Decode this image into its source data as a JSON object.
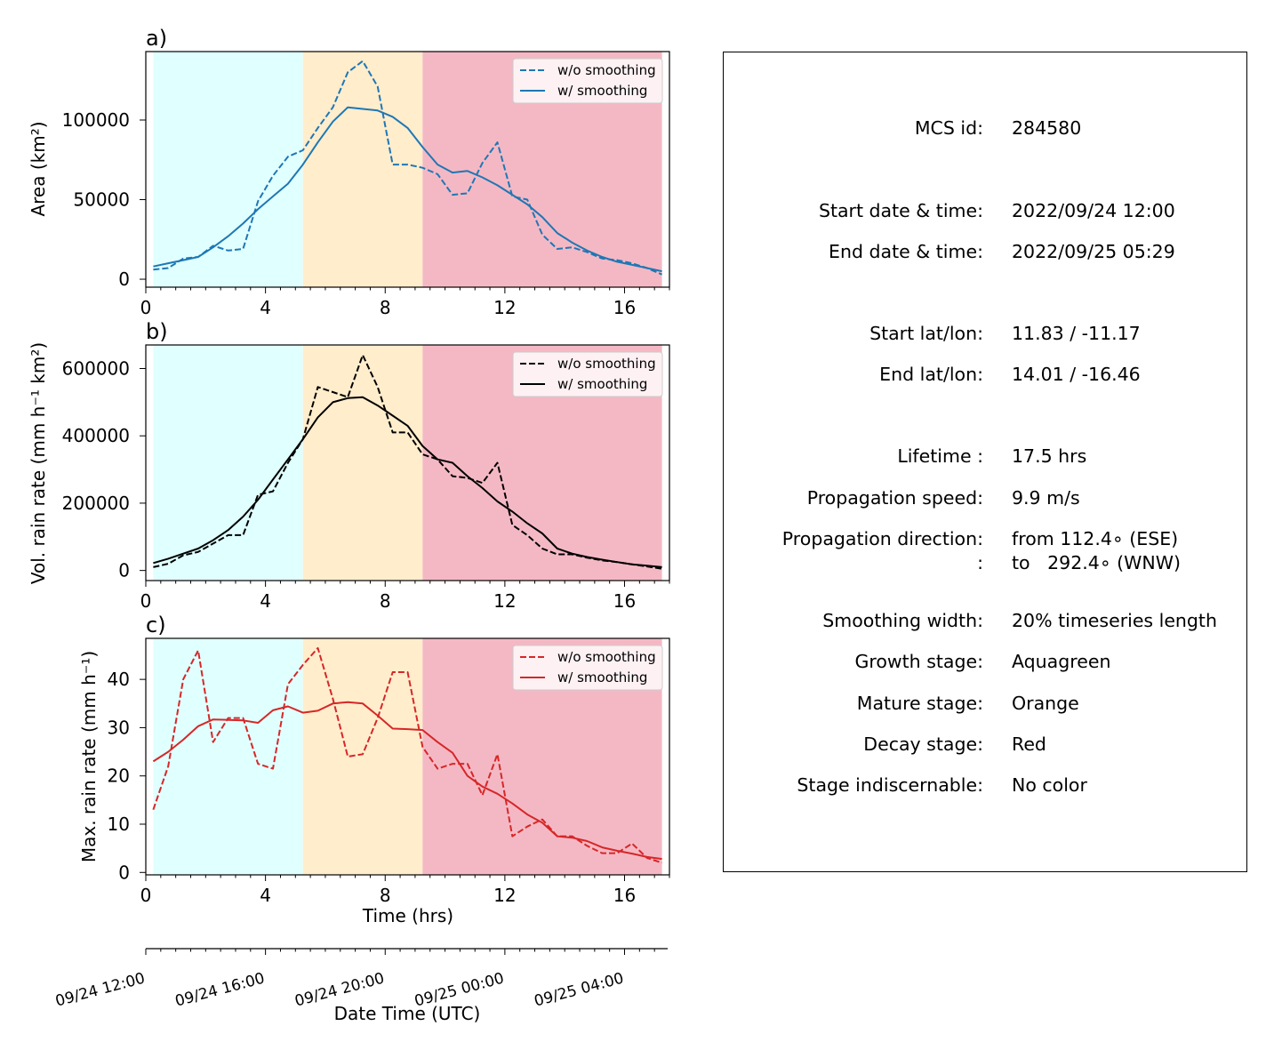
{
  "colors": {
    "growth_bg": "#e0ffff",
    "mature_bg": "#ffedcc",
    "decay_bg": "#f4b8c4",
    "series_blue": "#1f77b4",
    "series_black": "#000000",
    "series_red": "#d62728"
  },
  "chart_data": [
    {
      "type": "line",
      "panel_label": "a)",
      "ylabel": "Area  (km²)",
      "xlim": [
        0,
        17.5
      ],
      "ylim": [
        -5000,
        143000
      ],
      "xticks": [
        0,
        4,
        8,
        12,
        16
      ],
      "yticks": [
        0,
        50000,
        100000
      ],
      "stages": [
        {
          "name": "growth",
          "start": 0.25,
          "end": 5.25
        },
        {
          "name": "mature",
          "start": 5.25,
          "end": 9.25
        },
        {
          "name": "decay",
          "start": 9.25,
          "end": 17.25
        }
      ],
      "legend": {
        "position": "upper right"
      },
      "series": [
        {
          "name": "w/o smoothing",
          "style": "dashed",
          "color": "#1f77b4",
          "x": [
            0.25,
            0.75,
            1.25,
            1.75,
            2.25,
            2.75,
            3.25,
            3.75,
            4.25,
            4.75,
            5.25,
            5.75,
            6.25,
            6.75,
            7.25,
            7.75,
            8.25,
            8.75,
            9.25,
            9.75,
            10.25,
            10.75,
            11.25,
            11.75,
            12.25,
            12.75,
            13.25,
            13.75,
            14.25,
            14.75,
            15.25,
            15.75,
            16.25,
            16.75,
            17.25
          ],
          "y": [
            6000,
            7000,
            13000,
            14000,
            21000,
            18000,
            19000,
            49000,
            65000,
            77000,
            81000,
            95000,
            108000,
            130000,
            137000,
            121000,
            72000,
            72000,
            70000,
            66000,
            53000,
            54000,
            73000,
            86000,
            52000,
            50000,
            28000,
            19000,
            20000,
            17000,
            13000,
            12000,
            10000,
            7000,
            3000
          ]
        },
        {
          "name": "w/ smoothing",
          "style": "solid",
          "color": "#1f77b4",
          "x": [
            0.25,
            0.75,
            1.25,
            1.75,
            2.25,
            2.75,
            3.25,
            3.75,
            4.25,
            4.75,
            5.25,
            5.75,
            6.25,
            6.75,
            7.25,
            7.75,
            8.25,
            8.75,
            9.25,
            9.75,
            10.25,
            10.75,
            11.25,
            11.75,
            12.25,
            12.75,
            13.25,
            13.75,
            14.25,
            14.75,
            15.25,
            15.75,
            16.25,
            16.75,
            17.25
          ],
          "y": [
            8000,
            10000,
            12000,
            14000,
            20000,
            27000,
            35000,
            44000,
            52000,
            60000,
            72000,
            86000,
            99000,
            108000,
            107000,
            106000,
            102000,
            95000,
            83000,
            72000,
            67000,
            68000,
            64000,
            59000,
            53000,
            47000,
            39000,
            29000,
            23000,
            18000,
            14000,
            11000,
            9000,
            7000,
            5000
          ]
        }
      ]
    },
    {
      "type": "line",
      "panel_label": "b)",
      "ylabel": "Vol. rain rate (mm h⁻¹ km²)",
      "xlim": [
        0,
        17.5
      ],
      "ylim": [
        -30000,
        670000
      ],
      "xticks": [
        0,
        4,
        8,
        12,
        16
      ],
      "yticks": [
        0,
        200000,
        400000,
        600000
      ],
      "stages": [
        {
          "name": "growth",
          "start": 0.25,
          "end": 5.25
        },
        {
          "name": "mature",
          "start": 5.25,
          "end": 9.25
        },
        {
          "name": "decay",
          "start": 9.25,
          "end": 17.25
        }
      ],
      "legend": {
        "position": "upper right"
      },
      "series": [
        {
          "name": "w/o smoothing",
          "style": "dashed",
          "color": "#000000",
          "x": [
            0.25,
            0.75,
            1.25,
            1.75,
            2.25,
            2.75,
            3.25,
            3.75,
            4.25,
            4.75,
            5.25,
            5.75,
            6.25,
            6.75,
            7.25,
            7.75,
            8.25,
            8.75,
            9.25,
            9.75,
            10.25,
            10.75,
            11.25,
            11.75,
            12.25,
            12.75,
            13.25,
            13.75,
            14.25,
            14.75,
            15.25,
            15.75,
            16.25,
            16.75,
            17.25
          ],
          "y": [
            10000,
            20000,
            45000,
            55000,
            80000,
            105000,
            105000,
            225000,
            235000,
            320000,
            390000,
            545000,
            530000,
            515000,
            640000,
            545000,
            410000,
            410000,
            345000,
            330000,
            280000,
            275000,
            260000,
            320000,
            135000,
            105000,
            65000,
            48000,
            48000,
            38000,
            30000,
            25000,
            18000,
            12000,
            5000
          ]
        },
        {
          "name": "w/ smoothing",
          "style": "solid",
          "color": "#000000",
          "x": [
            0.25,
            0.75,
            1.25,
            1.75,
            2.25,
            2.75,
            3.25,
            3.75,
            4.25,
            4.75,
            5.25,
            5.75,
            6.25,
            6.75,
            7.25,
            7.75,
            8.25,
            8.75,
            9.25,
            9.75,
            10.25,
            10.75,
            11.25,
            11.75,
            12.25,
            12.75,
            13.25,
            13.75,
            14.25,
            14.75,
            15.25,
            15.75,
            16.25,
            16.75,
            17.25
          ],
          "y": [
            22000,
            35000,
            50000,
            65000,
            90000,
            120000,
            160000,
            210000,
            270000,
            330000,
            390000,
            455000,
            500000,
            512000,
            515000,
            490000,
            460000,
            430000,
            370000,
            330000,
            320000,
            280000,
            245000,
            205000,
            175000,
            140000,
            110000,
            65000,
            50000,
            40000,
            32000,
            25000,
            18000,
            14000,
            10000
          ]
        }
      ]
    },
    {
      "type": "line",
      "panel_label": "c)",
      "ylabel": "Max. rain rate  (mm h⁻¹)",
      "xlabel": "Time (hrs)",
      "xlim": [
        0,
        17.5
      ],
      "ylim": [
        -0.5,
        48.5
      ],
      "xticks": [
        0,
        4,
        8,
        12,
        16
      ],
      "yticks": [
        0,
        10,
        20,
        30,
        40
      ],
      "stages": [
        {
          "name": "growth",
          "start": 0.25,
          "end": 5.25
        },
        {
          "name": "mature",
          "start": 5.25,
          "end": 9.25
        },
        {
          "name": "decay",
          "start": 9.25,
          "end": 17.25
        }
      ],
      "legend": {
        "position": "upper right"
      },
      "series": [
        {
          "name": "w/o smoothing",
          "style": "dashed",
          "color": "#d62728",
          "x": [
            0.25,
            0.75,
            1.25,
            1.75,
            2.25,
            2.75,
            3.25,
            3.75,
            4.25,
            4.75,
            5.25,
            5.75,
            6.25,
            6.75,
            7.25,
            7.75,
            8.25,
            8.75,
            9.25,
            9.75,
            10.25,
            10.75,
            11.25,
            11.75,
            12.25,
            12.75,
            13.25,
            13.75,
            14.25,
            14.75,
            15.25,
            15.75,
            16.25,
            16.75,
            17.25
          ],
          "y": [
            13,
            22,
            40,
            46,
            27,
            32,
            32,
            22.5,
            21.5,
            39,
            43,
            46.5,
            36,
            24,
            24.5,
            32,
            41.5,
            41.5,
            26,
            21.5,
            22.5,
            22.5,
            16,
            24.5,
            7.5,
            9.5,
            11,
            7.5,
            7.5,
            5.5,
            4,
            4,
            6,
            3,
            2
          ]
        },
        {
          "name": "w/ smoothing",
          "style": "solid",
          "color": "#d62728",
          "x": [
            0.25,
            0.75,
            1.25,
            1.75,
            2.25,
            2.75,
            3.25,
            3.75,
            4.25,
            4.75,
            5.25,
            5.75,
            6.25,
            6.75,
            7.25,
            7.75,
            8.25,
            8.75,
            9.25,
            9.75,
            10.25,
            10.75,
            11.25,
            11.75,
            12.25,
            12.75,
            13.25,
            13.75,
            14.25,
            14.75,
            15.25,
            15.75,
            16.25,
            16.75,
            17.25
          ],
          "y": [
            23,
            25,
            27.5,
            30.3,
            31.7,
            31.6,
            31.5,
            31,
            33.6,
            34.4,
            33.1,
            33.5,
            35,
            35.3,
            35,
            32.5,
            29.8,
            29.7,
            29.5,
            27,
            24.8,
            20,
            17.8,
            16.3,
            14.3,
            12,
            10.3,
            7.5,
            7.2,
            6.5,
            5.2,
            4.5,
            3.9,
            3.2,
            2.8
          ]
        }
      ]
    },
    {
      "type": "axis",
      "xlabel": "Date Time (UTC)",
      "tick_labels": [
        "09/24 12:00",
        "09/24 16:00",
        "09/24 20:00",
        "09/25 00:00",
        "09/25 04:00"
      ],
      "tick_hours": [
        0,
        4,
        8,
        12,
        16
      ],
      "minor_ticks_every_hours": 0.5
    }
  ],
  "info": {
    "rows": [
      {
        "key": "MCS id:",
        "value": "284580"
      },
      {
        "key": "Start date & time:",
        "value": "2022/09/24 12:00"
      },
      {
        "key": "End date & time:",
        "value": "2022/09/25 05:29"
      },
      {
        "key": "Start lat/lon:",
        "value": "11.83 / -11.17"
      },
      {
        "key": "End lat/lon:",
        "value": "14.01 / -16.46"
      },
      {
        "key": "Lifetime :",
        "value": "17.5 hrs"
      },
      {
        "key": "Propagation speed:",
        "value": "9.9 m/s"
      },
      {
        "key": "Propagation direction:",
        "value": "from 112.4∘ (ESE)"
      },
      {
        "key": ":",
        "value": "to   292.4∘ (WNW)"
      },
      {
        "key": "Smoothing width:",
        "value": "20% timeseries length"
      },
      {
        "key": "Growth stage:",
        "value": "Aquagreen"
      },
      {
        "key": "Mature stage:",
        "value": "Orange"
      },
      {
        "key": "Decay stage:",
        "value": "Red"
      },
      {
        "key": "Stage indiscernable:",
        "value": "No color"
      }
    ]
  }
}
